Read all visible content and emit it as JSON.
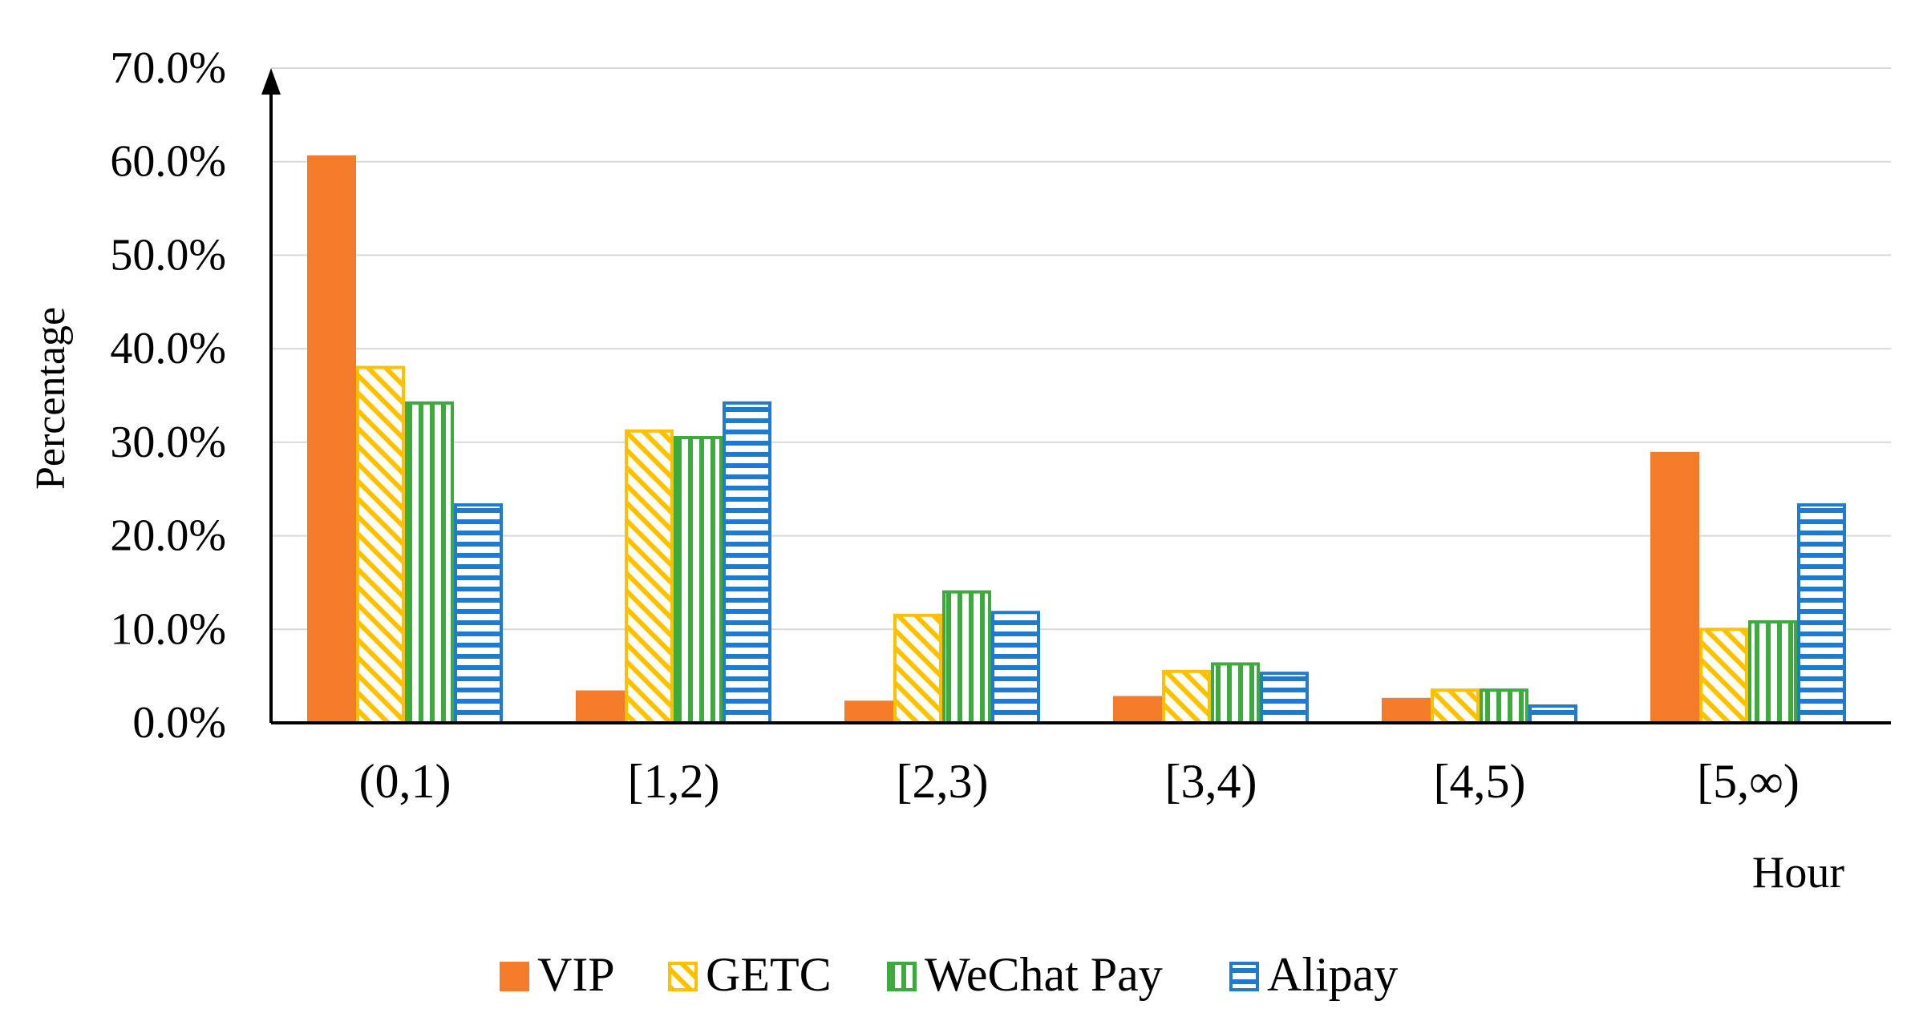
{
  "chart_data": {
    "type": "bar",
    "title": "",
    "xlabel": "Hour",
    "ylabel": "Percentage",
    "ylim": [
      0,
      70
    ],
    "yticks": [
      0,
      10,
      20,
      30,
      40,
      50,
      60,
      70
    ],
    "ytick_labels": [
      "0.0%",
      "10.0%",
      "20.0%",
      "30.0%",
      "40.0%",
      "50.0%",
      "60.0%",
      "70.0%"
    ],
    "grid": true,
    "legend_position": "bottom",
    "categories": [
      "(0,1)",
      "[1,2)",
      "[2,3)",
      "[3,4)",
      "[4,5)",
      "[5,∞)"
    ],
    "series": [
      {
        "name": "VIP",
        "pattern": "solid",
        "color": "#F47B29",
        "values": [
          60.5,
          3.3,
          2.2,
          2.7,
          2.5,
          28.8
        ]
      },
      {
        "name": "GETC",
        "pattern": "diagonal",
        "color": "#FFC000",
        "values": [
          38.0,
          31.2,
          11.5,
          5.5,
          3.5,
          10.0
        ]
      },
      {
        "name": "WeChat Pay",
        "pattern": "vertical",
        "color": "#3DAA3D",
        "values": [
          34.2,
          30.5,
          14.0,
          6.3,
          3.5,
          10.8
        ]
      },
      {
        "name": "Alipay",
        "pattern": "horizontal",
        "color": "#1F7BD0",
        "values": [
          23.3,
          34.2,
          11.8,
          5.3,
          1.8,
          23.3
        ]
      }
    ]
  }
}
